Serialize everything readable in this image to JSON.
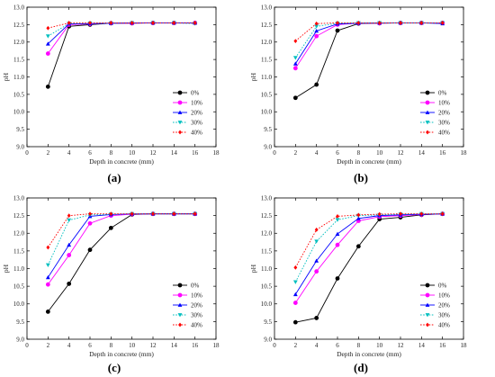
{
  "chart_data": [
    {
      "type": "line",
      "caption": "(a)",
      "xlabel": "Depth in concrete (mm)",
      "ylabel": "pH",
      "xlim": [
        0,
        18
      ],
      "ylim": [
        9.0,
        13.0
      ],
      "xticks": [
        0,
        2,
        4,
        6,
        8,
        10,
        12,
        14,
        16,
        18
      ],
      "yticks": [
        9.0,
        9.5,
        10.0,
        10.5,
        11.0,
        11.5,
        12.0,
        12.5,
        13.0
      ],
      "grid": false,
      "legend": "bottom-right",
      "x": [
        2,
        4,
        6,
        8,
        10,
        12,
        14,
        16
      ],
      "series": [
        {
          "name": "0%",
          "color": "#000000",
          "marker": "circle",
          "dash": "solid",
          "values": [
            10.72,
            12.45,
            12.5,
            12.54,
            12.54,
            12.55,
            12.55,
            12.55
          ]
        },
        {
          "name": "10%",
          "color": "#ff00ff",
          "marker": "circle",
          "dash": "solid",
          "values": [
            11.67,
            12.5,
            12.52,
            12.54,
            12.54,
            12.55,
            12.55,
            12.55
          ]
        },
        {
          "name": "20%",
          "color": "#0000ff",
          "marker": "triangle",
          "dash": "solid",
          "values": [
            11.95,
            12.52,
            12.53,
            12.54,
            12.55,
            12.55,
            12.55,
            12.55
          ]
        },
        {
          "name": "30%",
          "color": "#00bfbf",
          "marker": "triangle-down",
          "dash": "dotted",
          "values": [
            12.17,
            12.53,
            12.54,
            12.54,
            12.55,
            12.55,
            12.55,
            12.53
          ]
        },
        {
          "name": "40%",
          "color": "#ff0000",
          "marker": "diamond",
          "dash": "dotted",
          "values": [
            12.4,
            12.55,
            12.55,
            12.55,
            12.55,
            12.55,
            12.55,
            12.55
          ]
        }
      ]
    },
    {
      "type": "line",
      "caption": "(b)",
      "xlabel": "Depth in concrete (mm)",
      "ylabel": "pH",
      "xlim": [
        0,
        18
      ],
      "ylim": [
        9.0,
        13.0
      ],
      "xticks": [
        0,
        2,
        4,
        6,
        8,
        10,
        12,
        14,
        16,
        18
      ],
      "yticks": [
        9.0,
        9.5,
        10.0,
        10.5,
        11.0,
        11.5,
        12.0,
        12.5,
        13.0
      ],
      "grid": false,
      "legend": "bottom-right",
      "x": [
        2,
        4,
        6,
        8,
        10,
        12,
        14,
        16
      ],
      "series": [
        {
          "name": "0%",
          "color": "#000000",
          "marker": "circle",
          "dash": "solid",
          "values": [
            10.4,
            10.78,
            12.33,
            12.53,
            12.54,
            12.55,
            12.55,
            12.55
          ]
        },
        {
          "name": "10%",
          "color": "#ff00ff",
          "marker": "circle",
          "dash": "solid",
          "values": [
            11.25,
            12.17,
            12.5,
            12.54,
            12.54,
            12.55,
            12.55,
            12.55
          ]
        },
        {
          "name": "20%",
          "color": "#0000ff",
          "marker": "triangle",
          "dash": "solid",
          "values": [
            11.38,
            12.32,
            12.52,
            12.54,
            12.55,
            12.55,
            12.55,
            12.53
          ]
        },
        {
          "name": "30%",
          "color": "#00bfbf",
          "marker": "triangle-down",
          "dash": "dotted",
          "values": [
            11.55,
            12.45,
            12.54,
            12.55,
            12.55,
            12.55,
            12.55,
            12.55
          ]
        },
        {
          "name": "40%",
          "color": "#ff0000",
          "marker": "diamond",
          "dash": "dotted",
          "values": [
            12.03,
            12.53,
            12.55,
            12.55,
            12.55,
            12.55,
            12.55,
            12.55
          ]
        }
      ]
    },
    {
      "type": "line",
      "caption": "(c)",
      "xlabel": "Depth in concrete (mm)",
      "ylabel": "pH",
      "xlim": [
        0,
        18
      ],
      "ylim": [
        9.0,
        13.0
      ],
      "xticks": [
        0,
        2,
        4,
        6,
        8,
        10,
        12,
        14,
        16,
        18
      ],
      "yticks": [
        9.0,
        9.5,
        10.0,
        10.5,
        11.0,
        11.5,
        12.0,
        12.5,
        13.0
      ],
      "grid": false,
      "legend": "bottom-right",
      "x": [
        2,
        4,
        6,
        8,
        10,
        12,
        14,
        16
      ],
      "series": [
        {
          "name": "0%",
          "color": "#000000",
          "marker": "circle",
          "dash": "solid",
          "values": [
            9.78,
            10.57,
            11.53,
            12.15,
            12.53,
            12.55,
            12.55,
            12.55
          ]
        },
        {
          "name": "10%",
          "color": "#ff00ff",
          "marker": "circle",
          "dash": "solid",
          "values": [
            10.55,
            11.38,
            12.28,
            12.5,
            12.54,
            12.55,
            12.55,
            12.55
          ]
        },
        {
          "name": "20%",
          "color": "#0000ff",
          "marker": "triangle",
          "dash": "solid",
          "values": [
            10.75,
            11.67,
            12.48,
            12.53,
            12.55,
            12.55,
            12.55,
            12.55
          ]
        },
        {
          "name": "30%",
          "color": "#00bfbf",
          "marker": "triangle-down",
          "dash": "dotted",
          "values": [
            11.1,
            12.37,
            12.52,
            12.54,
            12.55,
            12.55,
            12.55,
            12.55
          ]
        },
        {
          "name": "40%",
          "color": "#ff0000",
          "marker": "diamond",
          "dash": "dotted",
          "values": [
            11.6,
            12.5,
            12.55,
            12.55,
            12.55,
            12.55,
            12.55,
            12.55
          ]
        }
      ]
    },
    {
      "type": "line",
      "caption": "(d)",
      "xlabel": "Depth in concrete (mm)",
      "ylabel": "pH",
      "xlim": [
        0,
        18
      ],
      "ylim": [
        9.0,
        13.0
      ],
      "xticks": [
        0,
        2,
        4,
        6,
        8,
        10,
        12,
        14,
        16,
        18
      ],
      "yticks": [
        9.0,
        9.5,
        10.0,
        10.5,
        11.0,
        11.5,
        12.0,
        12.5,
        13.0
      ],
      "grid": false,
      "legend": "bottom-right",
      "x": [
        2,
        4,
        6,
        8,
        10,
        12,
        14,
        16
      ],
      "series": [
        {
          "name": "0%",
          "color": "#000000",
          "marker": "circle",
          "dash": "solid",
          "values": [
            9.48,
            9.6,
            10.72,
            11.63,
            12.4,
            12.45,
            12.52,
            12.55
          ]
        },
        {
          "name": "10%",
          "color": "#ff00ff",
          "marker": "circle",
          "dash": "solid",
          "values": [
            10.03,
            10.92,
            11.67,
            12.35,
            12.47,
            12.5,
            12.53,
            12.55
          ]
        },
        {
          "name": "20%",
          "color": "#0000ff",
          "marker": "triangle",
          "dash": "solid",
          "values": [
            10.27,
            11.22,
            11.98,
            12.42,
            12.5,
            12.52,
            12.54,
            12.55
          ]
        },
        {
          "name": "30%",
          "color": "#00bfbf",
          "marker": "triangle-down",
          "dash": "dotted",
          "values": [
            10.62,
            11.77,
            12.38,
            12.5,
            12.52,
            12.54,
            12.55,
            12.55
          ]
        },
        {
          "name": "40%",
          "color": "#ff0000",
          "marker": "diamond",
          "dash": "dotted",
          "values": [
            11.03,
            12.1,
            12.48,
            12.52,
            12.54,
            12.55,
            12.55,
            12.55
          ]
        }
      ]
    }
  ]
}
